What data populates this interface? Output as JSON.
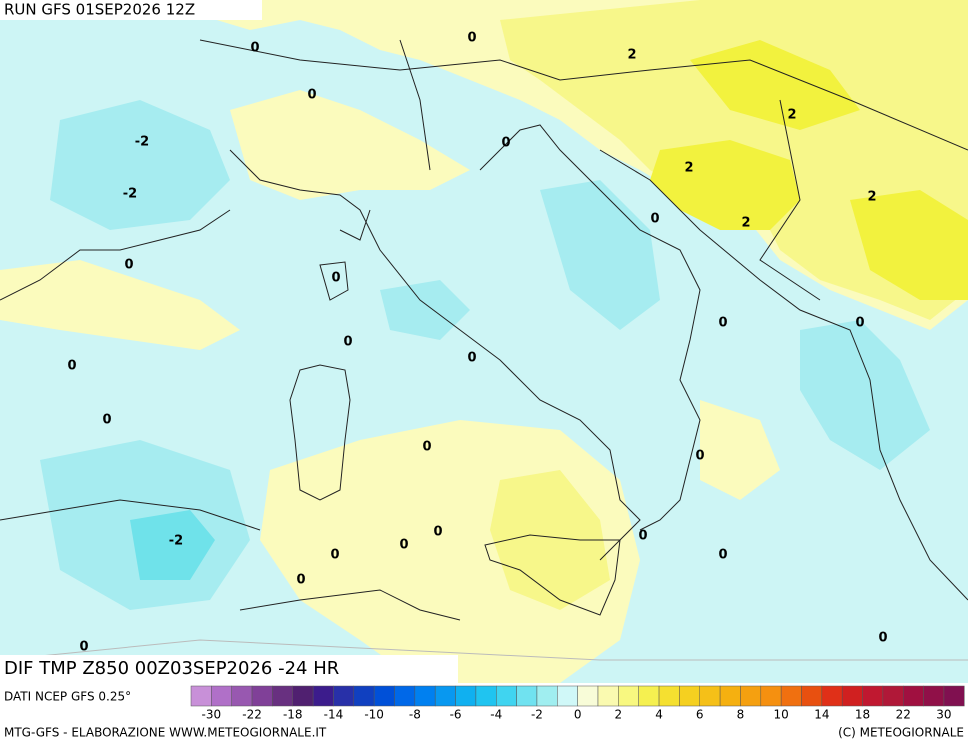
{
  "header": {
    "run": "RUN GFS 01SEP2026 12Z"
  },
  "map": {
    "title": "DIF TMP Z850 00Z03SEP2026 -24 HR",
    "contour_labels": [
      0,
      0,
      2,
      0,
      2,
      -2,
      0,
      2,
      -2,
      2,
      0,
      2,
      0,
      0,
      0,
      0,
      0,
      0,
      0,
      0,
      0,
      0,
      0,
      -2,
      0,
      0,
      0,
      0,
      0,
      0,
      0
    ]
  },
  "colorbar": {
    "ticks": [
      -30,
      -22,
      -18,
      -14,
      -10,
      -8,
      -6,
      -4,
      -2,
      0,
      2,
      4,
      6,
      8,
      10,
      14,
      18,
      22,
      30
    ]
  },
  "footer": {
    "source": "DATI NCEP GFS 0.25°",
    "credit": "MTG-GFS - ELABORAZIONE WWW.METEOGIORNALE.IT",
    "copyright": "(C) METEOGIORNALE"
  }
}
